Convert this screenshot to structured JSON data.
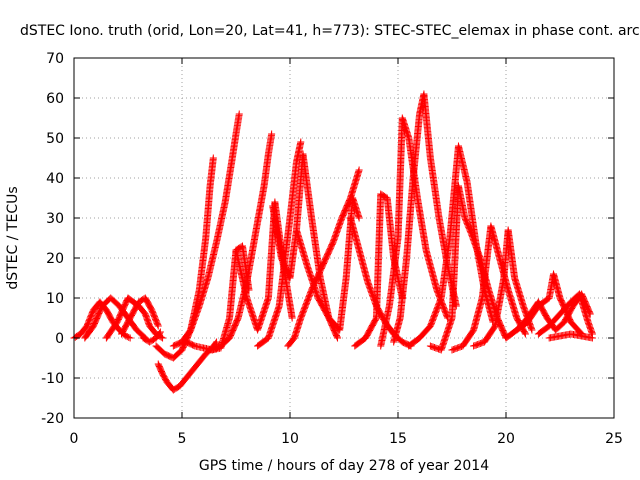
{
  "chart_data": {
    "type": "scatter",
    "title": "dSTEC Iono. truth (orid, Lon=20, Lat=41, h=773): STEC-STEC_elemax in phase cont. arc",
    "xlabel": "GPS time / hours of day 278 of year 2014",
    "ylabel": "dSTEC  / TECUs",
    "xlim": [
      0,
      25
    ],
    "ylim": [
      -20,
      70
    ],
    "xticks": [
      0,
      5,
      10,
      15,
      20,
      25
    ],
    "yticks": [
      -20,
      -10,
      0,
      10,
      20,
      30,
      40,
      50,
      60,
      70
    ],
    "grid": true,
    "marker": "+",
    "color": "#ff0000",
    "series": [
      {
        "x": [
          0.0,
          0.3,
          0.6,
          0.9,
          1.2,
          1.5,
          1.8,
          2.1,
          2.4,
          2.6
        ],
        "values": [
          0,
          1,
          3,
          7,
          9,
          7,
          4,
          2,
          0.5,
          0
        ]
      },
      {
        "x": [
          0.5,
          0.9,
          1.3,
          1.7,
          2.1,
          2.5,
          2.9,
          3.3
        ],
        "values": [
          0,
          3,
          8,
          10,
          8,
          5,
          2,
          0
        ]
      },
      {
        "x": [
          1.5,
          2.0,
          2.5,
          3.0,
          3.3,
          3.5,
          3.8,
          4.1
        ],
        "values": [
          0,
          4,
          10,
          8,
          6,
          3,
          1,
          0
        ]
      },
      {
        "x": [
          2.2,
          2.6,
          3.0,
          3.3,
          3.6,
          3.9
        ],
        "values": [
          1,
          5,
          9,
          10,
          7,
          3
        ]
      },
      {
        "x": [
          3.2,
          3.5,
          3.8,
          4.0
        ],
        "values": [
          0,
          -1,
          0,
          1.5
        ]
      },
      {
        "x": [
          3.9,
          4.1,
          4.3,
          4.6,
          4.9,
          5.2,
          5.5,
          5.8,
          6.1,
          6.4,
          6.6
        ],
        "values": [
          -6.5,
          -9,
          -11,
          -13,
          -12,
          -10,
          -8,
          -6,
          -4,
          -2.5,
          -1
        ]
      },
      {
        "x": [
          3.8,
          4.2,
          4.6,
          5.0,
          5.4,
          5.8,
          6.1,
          6.3,
          6.45
        ],
        "values": [
          -2,
          -4,
          -5,
          -3,
          2,
          12,
          25,
          38,
          45
        ]
      },
      {
        "x": [
          4.6,
          5.0,
          5.4,
          5.8,
          6.2,
          6.6,
          7.0,
          7.3,
          7.5,
          7.65
        ],
        "values": [
          -2,
          -1,
          2,
          8,
          15,
          24,
          34,
          44,
          51,
          56
        ]
      },
      {
        "x": [
          5.2,
          5.6,
          6.0,
          6.4,
          6.8,
          7.2,
          7.5,
          7.8,
          8.1
        ],
        "values": [
          -1,
          -2,
          -2.5,
          -3,
          -2.5,
          5,
          22,
          23,
          12
        ]
      },
      {
        "x": [
          6.0,
          6.4,
          6.8,
          7.2,
          7.6,
          8.0,
          8.4,
          8.8,
          9.0,
          9.15
        ],
        "values": [
          -2.5,
          -3,
          -2,
          0,
          5,
          14,
          26,
          38,
          46,
          51
        ]
      },
      {
        "x": [
          7.5,
          8.0,
          8.5,
          9.0,
          9.3,
          9.7,
          10.1
        ],
        "values": [
          22,
          10,
          2,
          10,
          34,
          18,
          5
        ]
      },
      {
        "x": [
          8.5,
          9.0,
          9.5,
          10.0,
          10.3,
          10.5
        ],
        "values": [
          -2,
          0,
          8,
          30,
          44,
          49
        ]
      },
      {
        "x": [
          9.2,
          9.6,
          10.0,
          10.3,
          10.6,
          11.0,
          11.4,
          11.8,
          12.2
        ],
        "values": [
          33,
          20,
          15,
          27,
          46,
          30,
          15,
          5,
          0
        ]
      },
      {
        "x": [
          9.9,
          10.2,
          10.5,
          11.0,
          11.5,
          12.0,
          12.4,
          12.8,
          13.2
        ],
        "values": [
          -2,
          0,
          5,
          12,
          18,
          24,
          30,
          35,
          42
        ]
      },
      {
        "x": [
          10.3,
          10.8,
          11.3,
          11.8,
          12.3,
          12.6,
          12.9,
          13.2
        ],
        "values": [
          27,
          18,
          10,
          5,
          2,
          15,
          35,
          30
        ]
      },
      {
        "x": [
          12.8,
          13.2,
          13.6,
          14.0,
          14.4,
          14.8,
          15.2,
          15.6
        ],
        "values": [
          30,
          22,
          14,
          8,
          4,
          1,
          -1,
          -2
        ]
      },
      {
        "x": [
          13.0,
          13.5,
          14.0,
          14.2,
          14.5,
          14.8,
          15.2
        ],
        "values": [
          -2,
          0,
          5,
          36,
          35,
          20,
          10
        ]
      },
      {
        "x": [
          14.2,
          14.6,
          15.0,
          15.2,
          15.5,
          15.9,
          16.3,
          16.8,
          17.3
        ],
        "values": [
          -2,
          8,
          25,
          55,
          50,
          35,
          22,
          12,
          5
        ]
      },
      {
        "x": [
          14.8,
          15.1,
          15.4,
          15.7,
          16.0,
          16.2,
          16.5,
          16.9,
          17.3,
          17.7
        ],
        "values": [
          -1,
          5,
          20,
          40,
          56,
          61,
          45,
          30,
          18,
          8
        ]
      },
      {
        "x": [
          15.5,
          16.0,
          16.5,
          17.0,
          17.4,
          17.8,
          18.2,
          18.6,
          19.0,
          19.4
        ],
        "values": [
          -2,
          0,
          3,
          10,
          25,
          48,
          39,
          24,
          12,
          4
        ]
      },
      {
        "x": [
          16.5,
          17.0,
          17.5,
          17.8,
          18.1,
          18.4,
          18.8,
          19.2,
          19.6,
          20.0
        ],
        "values": [
          -2,
          -3,
          5,
          38,
          30,
          26,
          20,
          12,
          5,
          0
        ]
      },
      {
        "x": [
          17.5,
          18.0,
          18.5,
          18.9,
          19.3,
          19.7,
          20.1,
          20.5,
          20.9
        ],
        "values": [
          -3,
          -2,
          2,
          10,
          28,
          20,
          12,
          5,
          1
        ]
      },
      {
        "x": [
          18.5,
          19.0,
          19.5,
          19.9,
          20.1,
          20.4,
          20.8,
          21.2
        ],
        "values": [
          -2,
          -1,
          3,
          15,
          27,
          15,
          8,
          2
        ]
      },
      {
        "x": [
          20.0,
          20.5,
          21.0,
          21.5,
          22.0,
          22.2,
          22.5,
          23.0,
          23.5
        ],
        "values": [
          0,
          2,
          4,
          8,
          10,
          16,
          10,
          4,
          1
        ]
      },
      {
        "x": [
          20.5,
          21.0,
          21.5,
          21.9,
          22.3,
          22.7,
          23.1,
          23.5,
          23.9
        ],
        "values": [
          2,
          5,
          9,
          5,
          2,
          4,
          8,
          11,
          6
        ]
      },
      {
        "x": [
          21.5,
          22.0,
          22.5,
          23.0,
          23.4,
          23.8,
          24.0
        ],
        "values": [
          1,
          3,
          6,
          9,
          11,
          4,
          1
        ]
      },
      {
        "x": [
          22.0,
          22.5,
          23.0,
          23.5,
          24.0
        ],
        "values": [
          0,
          0.5,
          1,
          0.5,
          0
        ]
      }
    ]
  }
}
